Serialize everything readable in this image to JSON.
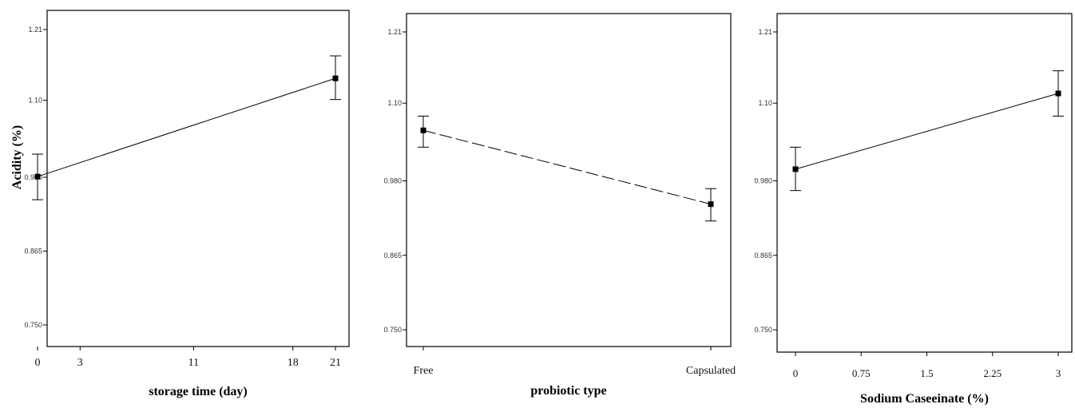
{
  "y_axis_title": "Acidity (%)",
  "chart_data": [
    {
      "type": "line",
      "title": "",
      "xlabel": "storage time (day)",
      "ylabel": "Acidity (%)",
      "x_tick_labels": [
        "0",
        "3",
        "11",
        "18",
        "21"
      ],
      "x_ticks": [
        0,
        3,
        11,
        18,
        21
      ],
      "xlim": [
        0,
        21
      ],
      "y_tick_labels": [
        "0.750",
        "0.865",
        "0.980",
        "1.10",
        "1.21"
      ],
      "y_ticks": [
        0.75,
        0.865,
        0.98,
        1.1,
        1.21
      ],
      "ylim": [
        0.75,
        1.21
      ],
      "line_style": "solid",
      "series": [
        {
          "x": [
            0,
            21
          ],
          "values": [
            0.981,
            1.134
          ],
          "err_low": [
            0.945,
            1.101
          ],
          "err_high": [
            1.016,
            1.169
          ]
        }
      ]
    },
    {
      "type": "line",
      "title": "",
      "xlabel": "probiotic type",
      "ylabel": "",
      "categories": [
        "Free",
        "Capsulated"
      ],
      "x_tick_labels": [
        "Free",
        "Capsulated"
      ],
      "xlim": [
        0,
        1
      ],
      "y_tick_labels": [
        "0.750",
        "0.865",
        "0.980",
        "1.10",
        "1.21"
      ],
      "y_ticks": [
        0.75,
        0.865,
        0.98,
        1.1,
        1.21
      ],
      "ylim": [
        0.75,
        1.21
      ],
      "line_style": "dashed",
      "series": [
        {
          "x": [
            0,
            1
          ],
          "values": [
            1.058,
            0.944
          ],
          "err_low": [
            1.032,
            0.918
          ],
          "err_high": [
            1.08,
            0.968
          ]
        }
      ]
    },
    {
      "type": "line",
      "title": "",
      "xlabel": "Sodium Caseeinate (%)",
      "ylabel": "",
      "x_tick_labels": [
        "0",
        "0.75",
        "1.5",
        "2.25",
        "3"
      ],
      "x_ticks": [
        0,
        0.75,
        1.5,
        2.25,
        3
      ],
      "xlim": [
        0,
        3
      ],
      "y_tick_labels": [
        "0.750",
        "0.865",
        "0.980",
        "1.10",
        "1.21"
      ],
      "y_ticks": [
        0.75,
        0.865,
        0.98,
        1.1,
        1.21
      ],
      "ylim": [
        0.75,
        1.21
      ],
      "line_style": "solid",
      "series": [
        {
          "x": [
            0,
            3
          ],
          "values": [
            0.998,
            1.115
          ],
          "err_low": [
            0.965,
            1.08
          ],
          "err_high": [
            1.032,
            1.15
          ]
        }
      ]
    }
  ]
}
